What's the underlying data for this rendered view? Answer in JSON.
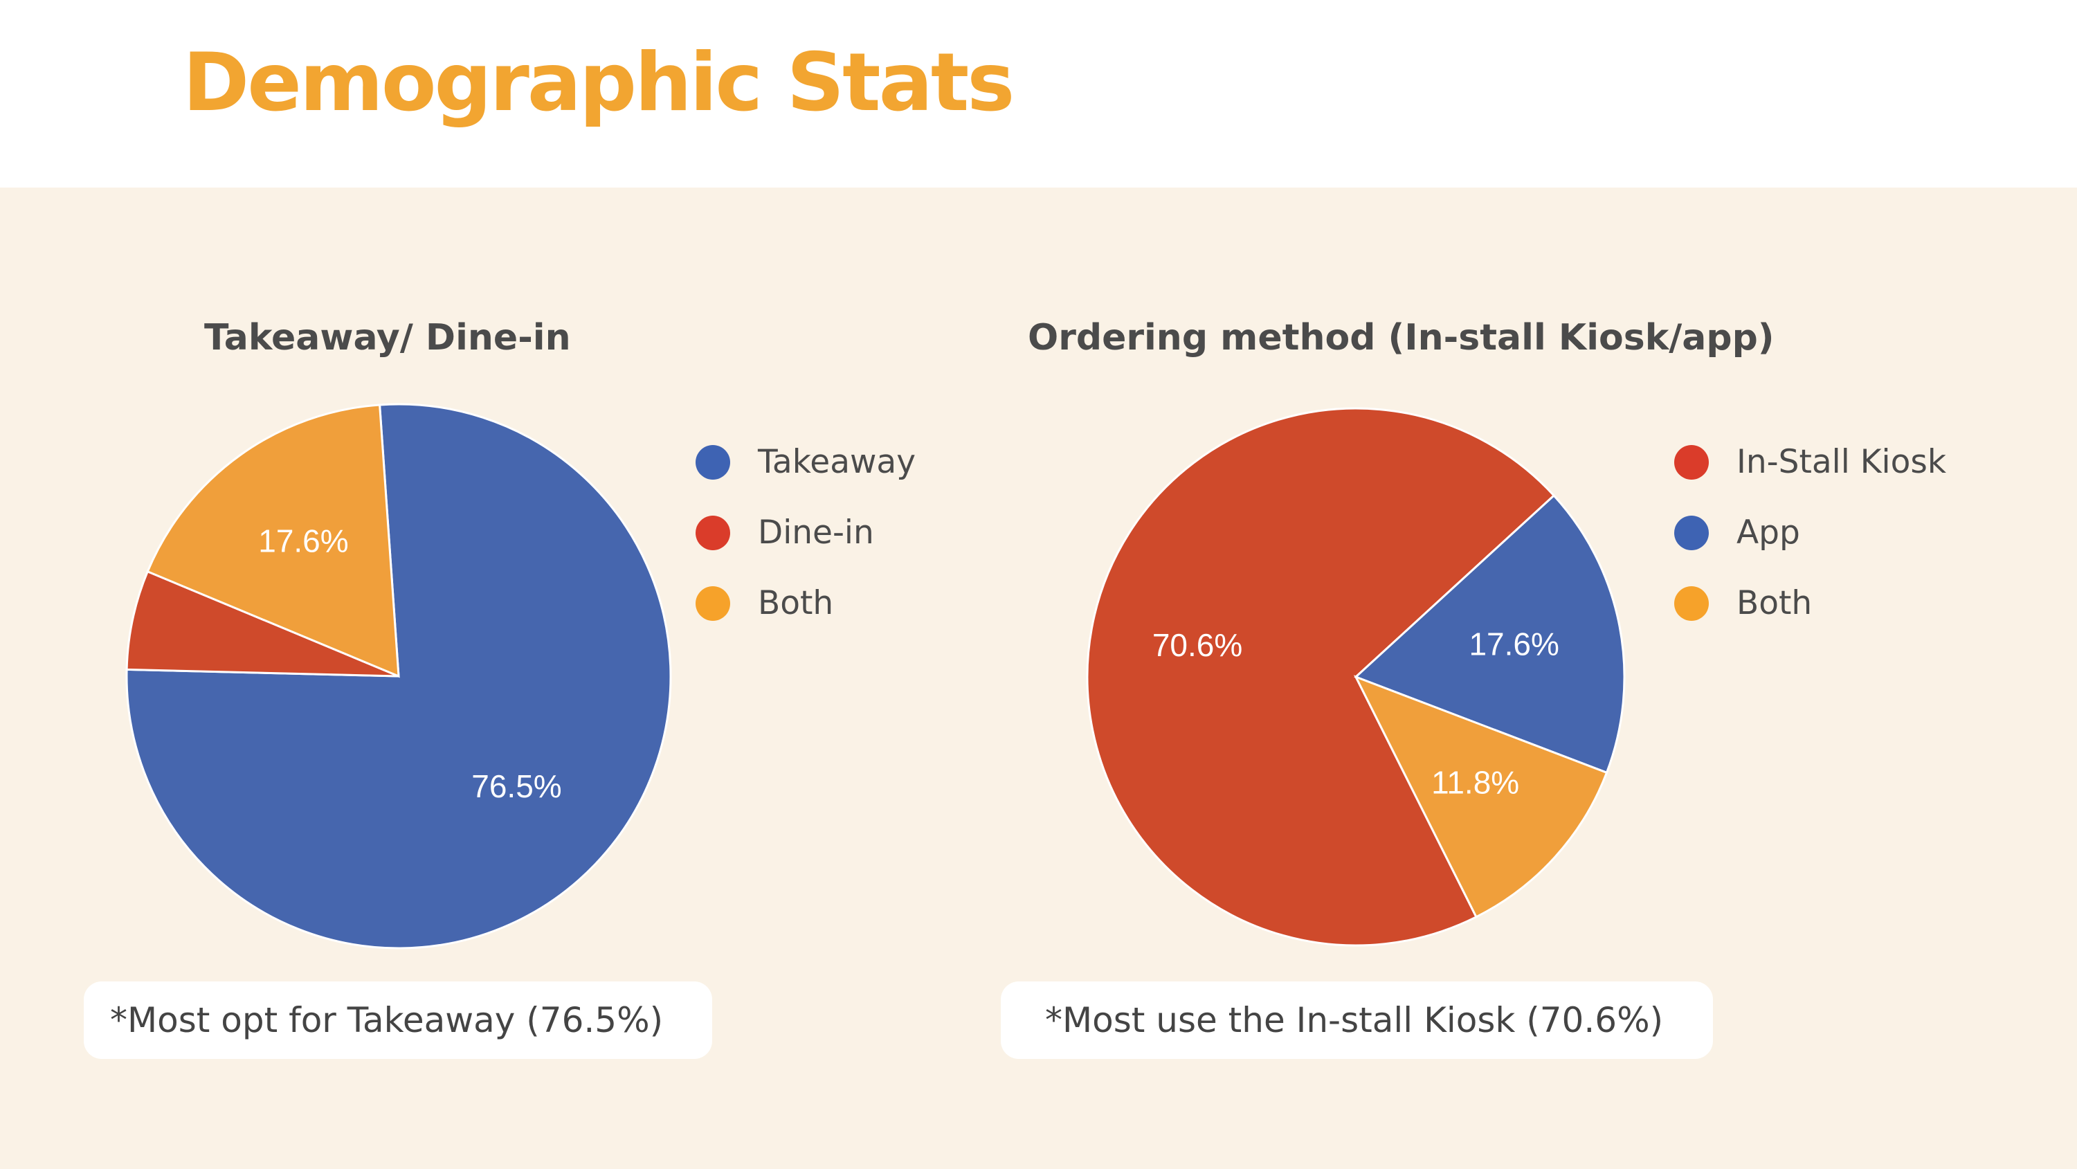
{
  "page": {
    "title": "Demographic Stats"
  },
  "colors": {
    "title": "#F2A531",
    "panel_background": "#FAF2E6",
    "blue": "#4666AE",
    "red": "#CF4A2B",
    "orange": "#F09F3B",
    "legend_blue": "#3E63B3",
    "legend_red": "#DA3C2A",
    "legend_orange": "#F6A22A"
  },
  "chart_data": [
    {
      "type": "pie",
      "title": "Takeaway/ Dine-in",
      "categories": [
        "Takeaway",
        "Dine-in",
        "Both"
      ],
      "values": [
        76.5,
        5.9,
        17.6
      ],
      "slice_labels": [
        "76.5%",
        "",
        "17.6%"
      ],
      "colors": [
        "#4666AE",
        "#CF4A2B",
        "#F09F3B"
      ],
      "legend_colors": [
        "#3E63B3",
        "#DA3C2A",
        "#F6A22A"
      ],
      "legend_position": "right",
      "note": "*Most opt for Takeaway (76.5%)"
    },
    {
      "type": "pie",
      "title": "Ordering method (In-stall Kiosk/app)",
      "categories": [
        "In-Stall Kiosk",
        "App",
        "Both"
      ],
      "values": [
        70.6,
        17.6,
        11.8
      ],
      "slice_labels": [
        "70.6%",
        "17.6%",
        "11.8%"
      ],
      "colors": [
        "#CF4A2B",
        "#4666AE",
        "#F09F3B"
      ],
      "legend_colors": [
        "#DA3C2A",
        "#3E63B3",
        "#F6A22A"
      ],
      "legend_position": "right",
      "note": "*Most use the In-stall Kiosk (70.6%)"
    }
  ]
}
